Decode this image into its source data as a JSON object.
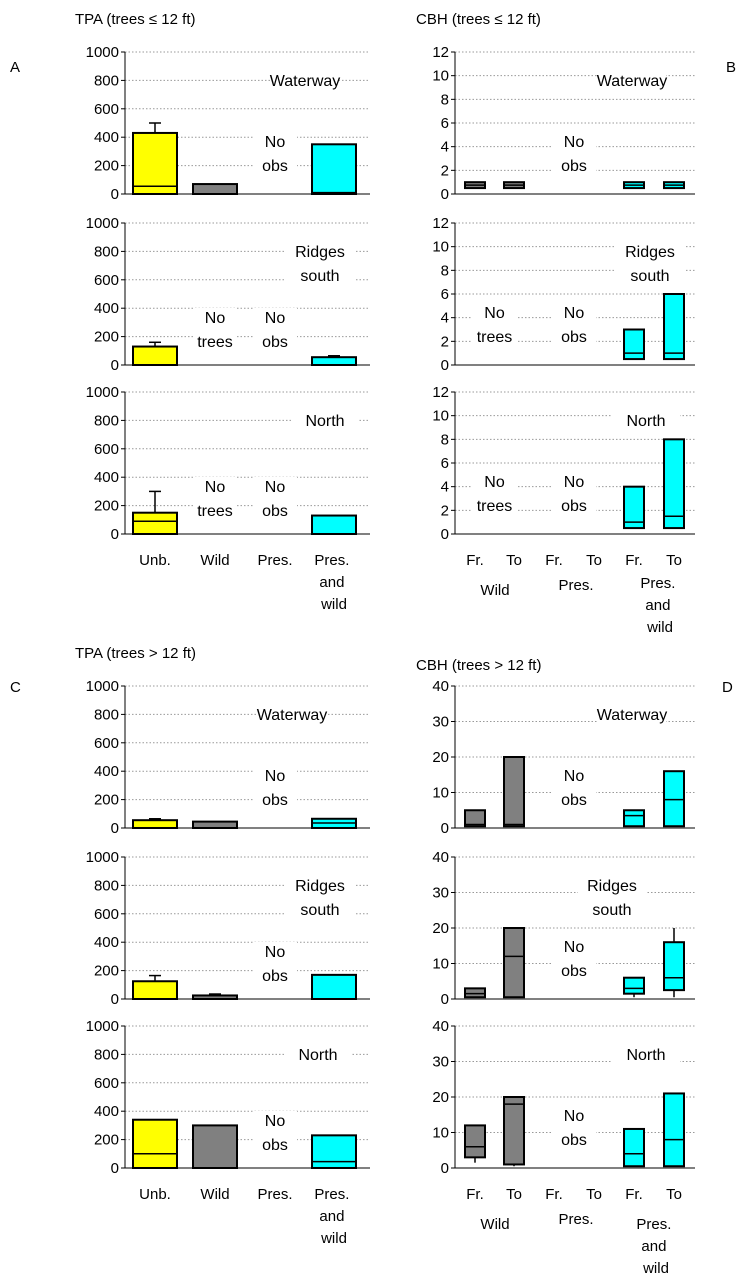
{
  "figure": {
    "panel_letters": [
      "A",
      "B",
      "C",
      "D"
    ],
    "titles": {
      "A": "TPA (trees ≤ 12 ft)",
      "B": "CBH (trees ≤ 12 ft)",
      "C": "TPA (trees > 12 ft)",
      "D": "CBH (trees > 12 ft)"
    },
    "tpa_categories": [
      "Unb.",
      "Wild",
      "Pres.",
      "Pres. and wild"
    ],
    "cbh_groups": [
      "Wild",
      "Pres.",
      "Pres. and wild"
    ],
    "cbh_subcategories": [
      "Fr.",
      "To"
    ]
  },
  "colors": {
    "Unb.": "#ffff00",
    "Wild": "#808080",
    "Pres. and wild": "#00ffff",
    "outline": "#000000"
  },
  "chart_data": [
    {
      "panel": "A",
      "type": "bar",
      "title": "TPA (trees ≤ 12 ft)",
      "categories": [
        "Unb.",
        "Wild",
        "Pres.",
        "Pres. and wild"
      ],
      "ylim": [
        0,
        1000
      ],
      "yticks": [
        0,
        200,
        400,
        600,
        800,
        1000
      ],
      "grid": true,
      "subplots": [
        {
          "label": "Waterway",
          "label_lines": [
            "Waterway"
          ],
          "values": [
            430,
            70,
            null,
            350
          ],
          "inner_lines": [
            55,
            null,
            null,
            10
          ],
          "error_top": [
            500,
            null,
            null,
            null
          ],
          "annotations": [
            {
              "category": "Pres.",
              "lines": [
                "No",
                "obs"
              ]
            }
          ]
        },
        {
          "label": "Ridges south",
          "label_lines": [
            "Ridges",
            "south"
          ],
          "values": [
            130,
            null,
            null,
            55
          ],
          "inner_lines": [
            null,
            null,
            null,
            null
          ],
          "error_top": [
            160,
            null,
            null,
            65
          ],
          "annotations": [
            {
              "category": "Wild",
              "lines": [
                "No",
                "trees"
              ]
            },
            {
              "category": "Pres.",
              "lines": [
                "No",
                "obs"
              ]
            }
          ]
        },
        {
          "label": "North",
          "label_lines": [
            "North"
          ],
          "values": [
            150,
            null,
            null,
            130
          ],
          "inner_lines": [
            90,
            null,
            null,
            null
          ],
          "error_top": [
            300,
            null,
            null,
            null
          ],
          "annotations": [
            {
              "category": "Wild",
              "lines": [
                "No",
                "trees"
              ]
            },
            {
              "category": "Pres.",
              "lines": [
                "No",
                "obs"
              ]
            }
          ]
        }
      ]
    },
    {
      "panel": "B",
      "type": "bar",
      "title": "CBH (trees ≤ 12 ft)",
      "groups": [
        "Wild",
        "Pres.",
        "Pres. and wild"
      ],
      "subcategories": [
        "Fr.",
        "To"
      ],
      "ylim": [
        0,
        12
      ],
      "yticks": [
        0,
        2,
        4,
        6,
        8,
        10,
        12
      ],
      "grid": true,
      "subplots": [
        {
          "label": "Waterway",
          "label_lines": [
            "Waterway"
          ],
          "bars": [
            {
              "group": "Wild",
              "sub": "Fr.",
              "low": 0.5,
              "high": 1.0,
              "mid": 0.75,
              "color": "#808080"
            },
            {
              "group": "Wild",
              "sub": "To",
              "low": 0.5,
              "high": 1.0,
              "mid": 0.75,
              "color": "#808080"
            },
            {
              "group": "Pres. and wild",
              "sub": "Fr.",
              "low": 0.5,
              "high": 1.0,
              "mid": 0.75,
              "color": "#00ffff"
            },
            {
              "group": "Pres. and wild",
              "sub": "To",
              "low": 0.5,
              "high": 1.0,
              "mid": 0.75,
              "color": "#00ffff"
            }
          ],
          "annotations": [
            {
              "group": "Pres.",
              "lines": [
                "No",
                "obs"
              ]
            }
          ]
        },
        {
          "label": "Ridges south",
          "label_lines": [
            "Ridges",
            "south"
          ],
          "bars": [
            {
              "group": "Pres. and wild",
              "sub": "Fr.",
              "low": 0.5,
              "high": 3.0,
              "mid": 1.0,
              "color": "#00ffff"
            },
            {
              "group": "Pres. and wild",
              "sub": "To",
              "low": 0.5,
              "high": 6.0,
              "mid": 1.0,
              "color": "#00ffff"
            }
          ],
          "annotations": [
            {
              "group": "Wild",
              "lines": [
                "No",
                "trees"
              ]
            },
            {
              "group": "Pres.",
              "lines": [
                "No",
                "obs"
              ]
            }
          ]
        },
        {
          "label": "North",
          "label_lines": [
            "North"
          ],
          "bars": [
            {
              "group": "Pres. and wild",
              "sub": "Fr.",
              "low": 0.5,
              "high": 4.0,
              "mid": 1.0,
              "color": "#00ffff"
            },
            {
              "group": "Pres. and wild",
              "sub": "To",
              "low": 0.5,
              "high": 8.0,
              "mid": 1.5,
              "color": "#00ffff"
            }
          ],
          "annotations": [
            {
              "group": "Wild",
              "lines": [
                "No",
                "trees"
              ]
            },
            {
              "group": "Pres.",
              "lines": [
                "No",
                "obs"
              ]
            }
          ]
        }
      ]
    },
    {
      "panel": "C",
      "type": "bar",
      "title": "TPA (trees > 12 ft)",
      "categories": [
        "Unb.",
        "Wild",
        "Pres.",
        "Pres. and wild"
      ],
      "ylim": [
        0,
        1000
      ],
      "yticks": [
        0,
        200,
        400,
        600,
        800,
        1000
      ],
      "grid": true,
      "subplots": [
        {
          "label": "Waterway",
          "label_lines": [
            "Waterway"
          ],
          "values": [
            55,
            45,
            null,
            65
          ],
          "inner_lines": [
            null,
            null,
            null,
            35
          ],
          "error_top": [
            65,
            null,
            null,
            null
          ],
          "annotations": [
            {
              "category": "Pres.",
              "lines": [
                "No",
                "obs"
              ]
            }
          ]
        },
        {
          "label": "Ridges south",
          "label_lines": [
            "Ridges",
            "south"
          ],
          "values": [
            125,
            25,
            null,
            170
          ],
          "inner_lines": [
            null,
            null,
            null,
            null
          ],
          "error_top": [
            165,
            35,
            null,
            null
          ],
          "annotations": [
            {
              "category": "Pres.",
              "lines": [
                "No",
                "obs"
              ]
            }
          ]
        },
        {
          "label": "North",
          "label_lines": [
            "North"
          ],
          "values": [
            340,
            300,
            null,
            230
          ],
          "inner_lines": [
            100,
            null,
            null,
            45
          ],
          "error_top": [
            null,
            null,
            null,
            null
          ],
          "annotations": [
            {
              "category": "Pres.",
              "lines": [
                "No",
                "obs"
              ]
            }
          ]
        }
      ]
    },
    {
      "panel": "D",
      "type": "bar",
      "title": "CBH (trees > 12 ft)",
      "groups": [
        "Wild",
        "Pres.",
        "Pres. and wild"
      ],
      "subcategories": [
        "Fr.",
        "To"
      ],
      "ylim": [
        0,
        40
      ],
      "yticks": [
        0,
        10,
        20,
        30,
        40
      ],
      "grid": true,
      "subplots": [
        {
          "label": "Waterway",
          "label_lines": [
            "Waterway"
          ],
          "bars": [
            {
              "group": "Wild",
              "sub": "Fr.",
              "low": 0.5,
              "high": 5.0,
              "mid": 1.0,
              "color": "#808080"
            },
            {
              "group": "Wild",
              "sub": "To",
              "low": 0.5,
              "high": 20.0,
              "mid": 1.0,
              "color": "#808080"
            },
            {
              "group": "Pres. and wild",
              "sub": "Fr.",
              "low": 0.5,
              "high": 5.0,
              "mid": 3.5,
              "color": "#00ffff"
            },
            {
              "group": "Pres. and wild",
              "sub": "To",
              "low": 0.5,
              "high": 16.0,
              "mid": 8.0,
              "color": "#00ffff"
            }
          ],
          "annotations": [
            {
              "group": "Pres.",
              "lines": [
                "No",
                "obs"
              ]
            }
          ]
        },
        {
          "label": "Ridges south",
          "label_lines": [
            "Ridges",
            "south"
          ],
          "bars": [
            {
              "group": "Wild",
              "sub": "Fr.",
              "low": 0.5,
              "high": 3.0,
              "mid": 1.5,
              "color": "#808080"
            },
            {
              "group": "Wild",
              "sub": "To",
              "low": 0.5,
              "high": 20.0,
              "mid": 12.0,
              "color": "#808080"
            },
            {
              "group": "Pres. and wild",
              "sub": "Fr.",
              "low": 1.5,
              "high": 6.0,
              "mid": 3.0,
              "color": "#00ffff",
              "error_low": 0.5
            },
            {
              "group": "Pres. and wild",
              "sub": "To",
              "low": 2.5,
              "high": 16.0,
              "mid": 6.0,
              "color": "#00ffff",
              "error_low": 0.5,
              "error_high": 20.0
            }
          ],
          "annotations": [
            {
              "group": "Pres.",
              "lines": [
                "No",
                "obs"
              ]
            }
          ]
        },
        {
          "label": "North",
          "label_lines": [
            "North"
          ],
          "bars": [
            {
              "group": "Wild",
              "sub": "Fr.",
              "low": 3.0,
              "high": 12.0,
              "mid": 6.0,
              "color": "#808080",
              "error_low": 1.5
            },
            {
              "group": "Wild",
              "sub": "To",
              "low": 1.0,
              "high": 20.0,
              "mid": 18.0,
              "color": "#808080",
              "error_low": 0.5
            },
            {
              "group": "Pres. and wild",
              "sub": "Fr.",
              "low": 0.5,
              "high": 11.0,
              "mid": 4.0,
              "color": "#00ffff"
            },
            {
              "group": "Pres. and wild",
              "sub": "To",
              "low": 0.5,
              "high": 21.0,
              "mid": 8.0,
              "color": "#00ffff"
            }
          ],
          "annotations": [
            {
              "group": "Pres.",
              "lines": [
                "No",
                "obs"
              ]
            }
          ]
        }
      ]
    }
  ]
}
